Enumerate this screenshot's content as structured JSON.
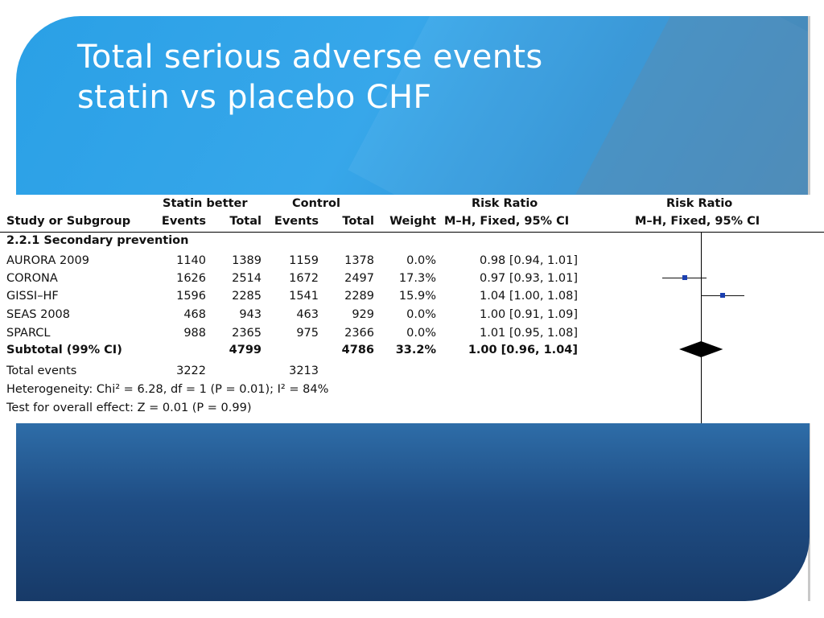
{
  "slide": {
    "title_line1": "Total serious adverse events",
    "title_line2": "statin vs placebo CHF",
    "colors": {
      "accent": "#37a7ea",
      "dark": "#1f4d84",
      "marker": "#1b3fb0"
    }
  },
  "table": {
    "header_group": {
      "statin": "Statin better",
      "control": "Control",
      "risk_ratio_col": "Risk Ratio",
      "risk_ratio_plot": "Risk Ratio"
    },
    "header": {
      "study": "Study or Subgroup",
      "events1": "Events",
      "total1": "Total",
      "events2": "Events",
      "total2": "Total",
      "weight": "Weight",
      "method_col": "M–H, Fixed, 95% CI",
      "method_plot": "M–H, Fixed, 95% CI"
    },
    "subgroup": "2.2.1 Secondary prevention",
    "rows": [
      {
        "study": "AURORA 2009",
        "events1": "1140",
        "total1": "1389",
        "events2": "1159",
        "total2": "1378",
        "weight": "0.0%",
        "ci": "0.98 [0.94, 1.01]"
      },
      {
        "study": "CORONA",
        "events1": "1626",
        "total1": "2514",
        "events2": "1672",
        "total2": "2497",
        "weight": "17.3%",
        "ci": "0.97 [0.93, 1.01]"
      },
      {
        "study": "GISSI–HF",
        "events1": "1596",
        "total1": "2285",
        "events2": "1541",
        "total2": "2289",
        "weight": "15.9%",
        "ci": "1.04 [1.00, 1.08]"
      },
      {
        "study": "SEAS 2008",
        "events1": "468",
        "total1": "943",
        "events2": "463",
        "total2": "929",
        "weight": "0.0%",
        "ci": "1.00 [0.91, 1.09]"
      },
      {
        "study": "SPARCL",
        "events1": "988",
        "total1": "2365",
        "events2": "975",
        "total2": "2366",
        "weight": "0.0%",
        "ci": "1.01 [0.95, 1.08]"
      }
    ],
    "subtotal": {
      "label": "Subtotal (99% CI)",
      "total1": "4799",
      "total2": "4786",
      "weight": "33.2%",
      "ci": "1.00 [0.96, 1.04]"
    },
    "total_events": {
      "label": "Total events",
      "events1": "3222",
      "events2": "3213"
    },
    "heterogeneity": "Heterogeneity: Chi² = 6.28, df = 1 (P = 0.01); I² = 84%",
    "overall_effect": "Test for overall effect: Z = 0.01 (P = 0.99)"
  },
  "plot": {
    "studies": [
      {
        "name": "CORONA",
        "rr": 0.97,
        "low": 0.93,
        "high": 1.01
      },
      {
        "name": "GISSI–HF",
        "rr": 1.04,
        "low": 1.0,
        "high": 1.08
      }
    ],
    "subtotal": {
      "rr": 1.0,
      "low": 0.96,
      "high": 1.04
    },
    "null_value": 1.0
  }
}
